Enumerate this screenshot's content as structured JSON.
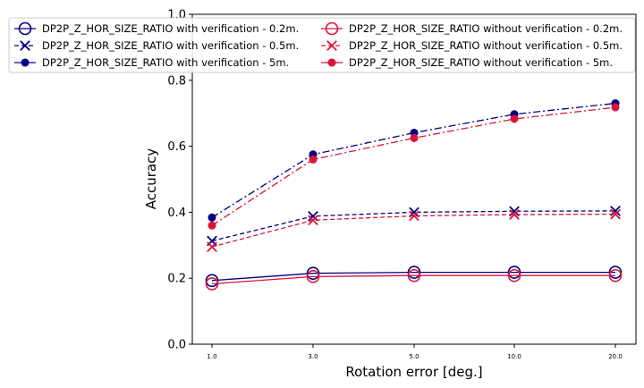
{
  "chart_data": {
    "type": "line",
    "xlabel": "Rotation error [deg.]",
    "ylabel": "Accuracy",
    "categories": [
      "1.0",
      "3.0",
      "5.0",
      "10.0",
      "20.0"
    ],
    "ylim": [
      0.0,
      1.0
    ],
    "yticks": [
      "0.0",
      "0.2",
      "0.4",
      "0.6",
      "0.8",
      "1.0"
    ],
    "grid": false,
    "legend_position": "top-left, two columns",
    "series": [
      {
        "name": "DP2P_Z_HOR_SIZE_RATIO with verification - 0.2m.",
        "values": [
          0.193,
          0.215,
          0.218,
          0.218,
          0.218
        ],
        "color": "#000080",
        "marker": "open-circle",
        "linestyle": "solid"
      },
      {
        "name": "DP2P_Z_HOR_SIZE_RATIO with verification - 0.5m.",
        "values": [
          0.313,
          0.388,
          0.4,
          0.403,
          0.404
        ],
        "color": "#000080",
        "marker": "x",
        "linestyle": "dashed"
      },
      {
        "name": "DP2P_Z_HOR_SIZE_RATIO with verification - 5m.",
        "values": [
          0.384,
          0.575,
          0.641,
          0.697,
          0.73
        ],
        "color": "#000080",
        "marker": "filled-circle",
        "linestyle": "dashdot"
      },
      {
        "name": "DP2P_Z_HOR_SIZE_RATIO without verification - 0.2m.",
        "values": [
          0.183,
          0.205,
          0.208,
          0.208,
          0.208
        ],
        "color": "#dc143c",
        "marker": "open-circle",
        "linestyle": "solid"
      },
      {
        "name": "DP2P_Z_HOR_SIZE_RATIO without verification - 0.5m.",
        "values": [
          0.295,
          0.376,
          0.389,
          0.393,
          0.394
        ],
        "color": "#dc143c",
        "marker": "x",
        "linestyle": "dashed"
      },
      {
        "name": "DP2P_Z_HOR_SIZE_RATIO without verification - 5m.",
        "values": [
          0.36,
          0.56,
          0.625,
          0.683,
          0.718
        ],
        "color": "#dc143c",
        "marker": "filled-circle",
        "linestyle": "dashdot"
      }
    ]
  }
}
